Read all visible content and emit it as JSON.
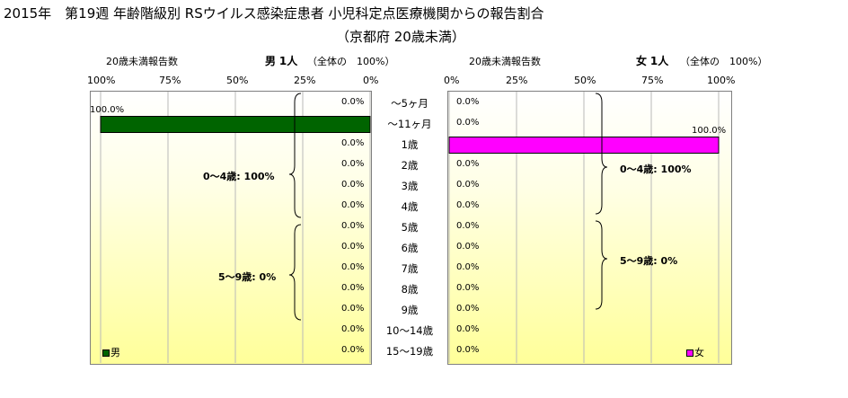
{
  "title": {
    "line1": "2015年　第19週 年齢階級別 RSウイルス感染症患者 小児科定点医療機関からの報告割合",
    "line2": "（京都府 20歳未満）"
  },
  "left_header": {
    "label": "20歳未満報告数",
    "sex": "男",
    "count": "1人",
    "total": "（全体の　100%）"
  },
  "right_header": {
    "label": "20歳未満報告数",
    "sex": "女",
    "count": "1人",
    "total": "（全体の　100%）"
  },
  "left_ticks": [
    "100%",
    "75%",
    "50%",
    "25%",
    "0%"
  ],
  "right_ticks": [
    "0%",
    "25%",
    "50%",
    "75%",
    "100%"
  ],
  "brackets": {
    "left_0_4": "0〜4歳: 100%",
    "left_5_9": "5〜9歳: 0%",
    "right_0_4": "0〜4歳: 100%",
    "right_5_9": "5〜9歳: 0%"
  },
  "legend": {
    "male": "男",
    "female": "女"
  },
  "colors": {
    "male": "#006400",
    "female": "#ff00ff"
  },
  "chart_data": {
    "type": "bar",
    "categories": [
      "〜5ヶ月",
      "〜11ヶ月",
      "1歳",
      "2歳",
      "3歳",
      "4歳",
      "5歳",
      "6歳",
      "7歳",
      "8歳",
      "9歳",
      "10〜14歳",
      "15〜19歳"
    ],
    "series": [
      {
        "name": "男",
        "values": [
          0,
          100,
          0,
          0,
          0,
          0,
          0,
          0,
          0,
          0,
          0,
          0,
          0
        ],
        "labels": [
          "0.0%",
          "100.0%",
          "0.0%",
          "0.0%",
          "0.0%",
          "0.0%",
          "0.0%",
          "0.0%",
          "0.0%",
          "0.0%",
          "0.0%",
          "0.0%",
          "0.0%"
        ]
      },
      {
        "name": "女",
        "values": [
          0,
          0,
          100,
          0,
          0,
          0,
          0,
          0,
          0,
          0,
          0,
          0,
          0
        ],
        "labels": [
          "0.0%",
          "0.0%",
          "100.0%",
          "0.0%",
          "0.0%",
          "0.0%",
          "0.0%",
          "0.0%",
          "0.0%",
          "0.0%",
          "0.0%",
          "0.0%",
          "0.0%"
        ]
      }
    ],
    "xlim": [
      0,
      100
    ],
    "grid": true
  }
}
